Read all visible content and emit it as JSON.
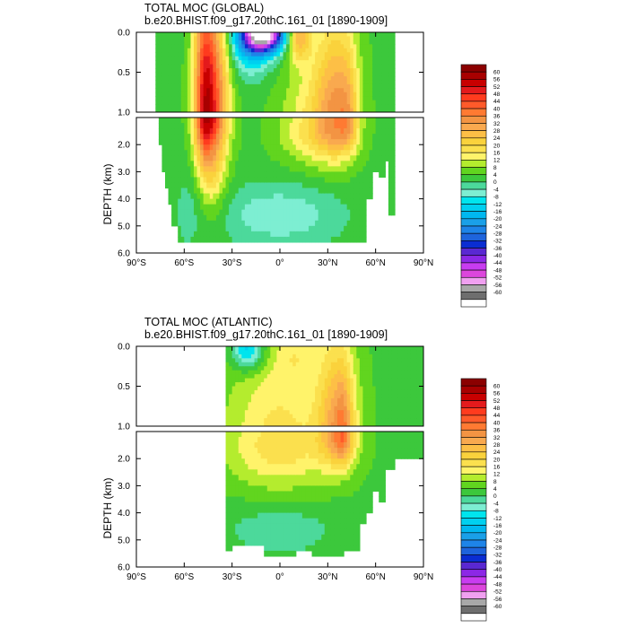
{
  "chart_data": [
    {
      "type": "heatmap",
      "title": "TOTAL MOC (GLOBAL)",
      "subtitle": "b.e20.BHIST.f09_g17.20thC.161_01 [1890-1909]",
      "ylabel": "DEPTH (km)",
      "xlabel": "",
      "x_ticks": [
        "90°S",
        "60°S",
        "30°S",
        "0°",
        "30°N",
        "60°N",
        "90°N"
      ],
      "x_tick_values": [
        -90,
        -60,
        -30,
        0,
        30,
        60,
        90
      ],
      "y_ticks": [
        "0.0",
        "0.5",
        "1.0",
        "2.0",
        "3.0",
        "4.0",
        "5.0",
        "6.0"
      ],
      "y_tick_values": [
        0.0,
        0.5,
        1.0,
        2.0,
        3.0,
        4.0,
        5.0,
        6.0
      ],
      "xlim": [
        -90,
        90
      ],
      "ylim_upper": [
        0,
        1
      ],
      "ylim_lower": [
        1,
        6
      ],
      "colorbar": {
        "labels": [
          "60",
          "56",
          "52",
          "48",
          "44",
          "40",
          "36",
          "32",
          "28",
          "24",
          "20",
          "16",
          "12",
          "8",
          "4",
          "0",
          "-4",
          "-8",
          "-12",
          "-16",
          "-20",
          "-24",
          "-28",
          "-32",
          "-36",
          "-40",
          "-44",
          "-48",
          "-52",
          "-56",
          "-60"
        ],
        "colors": [
          "#8b0000",
          "#a80000",
          "#c80000",
          "#e41a1c",
          "#ff3b1e",
          "#ff5a2a",
          "#ff7a32",
          "#f39443",
          "#f9a94f",
          "#fdbf46",
          "#fad23c",
          "#fbe04e",
          "#fff36a",
          "#b4ec2e",
          "#61d51f",
          "#3cc83c",
          "#4cd99b",
          "#7deed2",
          "#00e5ee",
          "#00d0f0",
          "#00b8f0",
          "#1aa0e8",
          "#1e84e8",
          "#1e64dc",
          "#0a2dd2",
          "#5a28d2",
          "#8c28e6",
          "#c83cf0",
          "#dc46dc",
          "#f0a0f0",
          "#a8a8a8",
          "#6e6e6e",
          "#ffffff"
        ]
      },
      "field": {
        "lat_range_mask": [
          -78,
          72
        ],
        "bottom_depth": [
          [
            -78,
            1.0
          ],
          [
            -76,
            2.0
          ],
          [
            -74,
            3.0
          ],
          [
            -72,
            3.6
          ],
          [
            -70,
            4.2
          ],
          [
            -68,
            5.0
          ],
          [
            -64,
            5.6
          ],
          [
            -50,
            5.6
          ],
          [
            -20,
            5.6
          ],
          [
            0,
            5.6
          ],
          [
            20,
            5.6
          ],
          [
            40,
            5.6
          ],
          [
            52,
            5.6
          ],
          [
            54,
            4.0
          ],
          [
            58,
            3.0
          ],
          [
            62,
            3.2
          ],
          [
            66,
            2.6
          ],
          [
            68,
            4.6
          ],
          [
            72,
            4.8
          ]
        ],
        "centers": [
          {
            "lat": -42,
            "depth": 0.7,
            "value": 28,
            "wx": 10,
            "wy": 1.3
          },
          {
            "lat": -42,
            "depth": 2.3,
            "value": 20,
            "wx": 9,
            "wy": 2.0
          },
          {
            "lat": -48,
            "depth": 1.0,
            "value": 24,
            "wx": 6,
            "wy": 1.8
          },
          {
            "lat": -10,
            "depth": 0.02,
            "value": -60,
            "wx": 13,
            "wy": 0.22
          },
          {
            "lat": -18,
            "depth": 0.12,
            "value": -20,
            "wx": 14,
            "wy": 0.4
          },
          {
            "lat": 12,
            "depth": 0.04,
            "value": 24,
            "wx": 7,
            "wy": 0.3
          },
          {
            "lat": 35,
            "depth": 1.1,
            "value": 24,
            "wx": 13,
            "wy": 1.4
          },
          {
            "lat": 43,
            "depth": 1.3,
            "value": 12,
            "wx": 6,
            "wy": 1.0
          },
          {
            "lat": 20,
            "depth": 1.5,
            "value": 14,
            "wx": 20,
            "wy": 1.2
          },
          {
            "lat": 0,
            "depth": 4.6,
            "value": -10,
            "wx": 40,
            "wy": 1.2
          },
          {
            "lat": -58,
            "depth": 4.5,
            "value": -4,
            "wx": 8,
            "wy": 1.5
          }
        ],
        "background": 3
      }
    },
    {
      "type": "heatmap",
      "title": "TOTAL MOC (ATLANTIC)",
      "subtitle": "b.e20.BHIST.f09_g17.20thC.161_01 [1890-1909]",
      "ylabel": "DEPTH (km)",
      "xlabel": "",
      "x_ticks": [
        "90°S",
        "60°S",
        "30°S",
        "0°",
        "30°N",
        "60°N",
        "90°N"
      ],
      "x_tick_values": [
        -90,
        -60,
        -30,
        0,
        30,
        60,
        90
      ],
      "y_ticks": [
        "0.0",
        "0.5",
        "1.0",
        "2.0",
        "3.0",
        "4.0",
        "5.0",
        "6.0"
      ],
      "y_tick_values": [
        0.0,
        0.5,
        1.0,
        2.0,
        3.0,
        4.0,
        5.0,
        6.0
      ],
      "xlim": [
        -90,
        90
      ],
      "ylim_upper": [
        0,
        1
      ],
      "ylim_lower": [
        1,
        6
      ],
      "colorbar": {
        "labels": [
          "60",
          "56",
          "52",
          "48",
          "44",
          "40",
          "36",
          "32",
          "28",
          "24",
          "20",
          "16",
          "12",
          "8",
          "4",
          "0",
          "-4",
          "-8",
          "-12",
          "-16",
          "-20",
          "-24",
          "-28",
          "-32",
          "-36",
          "-40",
          "-44",
          "-48",
          "-52",
          "-56",
          "-60"
        ],
        "colors": [
          "#8b0000",
          "#a80000",
          "#c80000",
          "#e41a1c",
          "#ff3b1e",
          "#ff5a2a",
          "#ff7a32",
          "#f39443",
          "#f9a94f",
          "#fdbf46",
          "#fad23c",
          "#fbe04e",
          "#fff36a",
          "#b4ec2e",
          "#61d51f",
          "#3cc83c",
          "#4cd99b",
          "#7deed2",
          "#00e5ee",
          "#00d0f0",
          "#00b8f0",
          "#1aa0e8",
          "#1e84e8",
          "#1e64dc",
          "#0a2dd2",
          "#5a28d2",
          "#8c28e6",
          "#c83cf0",
          "#dc46dc",
          "#f0a0f0",
          "#a8a8a8",
          "#6e6e6e",
          "#ffffff"
        ]
      },
      "field": {
        "lat_range_mask": [
          -34,
          90
        ],
        "bottom_depth": [
          [
            -34,
            5.4
          ],
          [
            -30,
            5.2
          ],
          [
            -20,
            5.3
          ],
          [
            -10,
            5.6
          ],
          [
            0,
            5.6
          ],
          [
            10,
            5.5
          ],
          [
            20,
            5.6
          ],
          [
            40,
            5.4
          ],
          [
            50,
            4.5
          ],
          [
            54,
            4.0
          ],
          [
            58,
            3.2
          ],
          [
            62,
            3.6
          ],
          [
            66,
            2.4
          ],
          [
            72,
            2.0
          ],
          [
            90,
            2.4
          ]
        ],
        "centers": [
          {
            "lat": 36,
            "depth": 1.1,
            "value": 24,
            "wx": 12,
            "wy": 1.2
          },
          {
            "lat": 40,
            "depth": 1.3,
            "value": 12,
            "wx": 5,
            "wy": 0.9
          },
          {
            "lat": 0,
            "depth": 1.5,
            "value": 16,
            "wx": 34,
            "wy": 1.6
          },
          {
            "lat": -20,
            "depth": 0.04,
            "value": -20,
            "wx": 10,
            "wy": 0.25
          },
          {
            "lat": 10,
            "depth": 0.1,
            "value": 6,
            "wx": 12,
            "wy": 0.3
          },
          {
            "lat": 0,
            "depth": 4.6,
            "value": -6,
            "wx": 35,
            "wy": 1.0
          }
        ],
        "background": 3
      }
    }
  ]
}
